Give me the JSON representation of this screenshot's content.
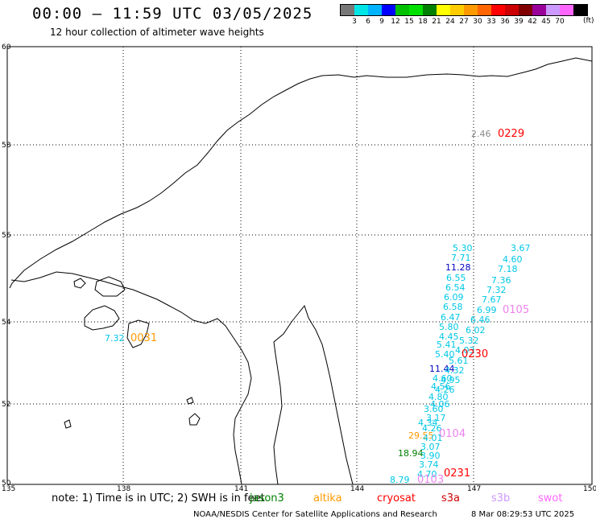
{
  "header": {
    "title": "00:00 – 11:59 UTC 03/05/2025",
    "subtitle": "12 hour collection of altimeter wave heights"
  },
  "legend": {
    "colors": [
      "#777777",
      "#00e6e6",
      "#00b3ff",
      "#0000ff",
      "#00c000",
      "#00e000",
      "#008000",
      "#ffff00",
      "#ffcc00",
      "#ff9900",
      "#ff6600",
      "#ff0000",
      "#cc0000",
      "#800000",
      "#990099",
      "#cc99ff",
      "#ff66ff",
      "#000000"
    ],
    "labels": [
      "3",
      "6",
      "9",
      "12",
      "15",
      "18",
      "21",
      "24",
      "27",
      "30",
      "33",
      "36",
      "39",
      "42",
      "45",
      "70"
    ],
    "unit": "(ft)"
  },
  "map": {
    "lat_labels": [
      "60",
      "58",
      "56",
      "54",
      "52",
      "50"
    ],
    "lon_labels": [
      "135",
      "138",
      "141",
      "144",
      "147",
      "150"
    ]
  },
  "observations": [
    {
      "text": "2.46",
      "color": "#888888"
    },
    {
      "text": "0229",
      "color": "#ff0000"
    },
    {
      "text": "5.30",
      "color": "#00c8e6"
    },
    {
      "text": "3.67",
      "color": "#00c8e6"
    },
    {
      "text": "7.71",
      "color": "#00c8e6"
    },
    {
      "text": "4.60",
      "color": "#00c8e6"
    },
    {
      "text": "11.28",
      "color": "#0000c0"
    },
    {
      "text": "7.18",
      "color": "#00c8e6"
    },
    {
      "text": "6.55",
      "color": "#00c8e6"
    },
    {
      "text": "7.36",
      "color": "#00c8e6"
    },
    {
      "text": "6.54",
      "color": "#00c8e6"
    },
    {
      "text": "7.32",
      "color": "#00c8e6"
    },
    {
      "text": "6.09",
      "color": "#00c8e6"
    },
    {
      "text": "7.67",
      "color": "#00c8e6"
    },
    {
      "text": "6.58",
      "color": "#00c8e6"
    },
    {
      "text": "6.99",
      "color": "#00c8e6"
    },
    {
      "text": "0105",
      "color": "#ee82ee"
    },
    {
      "text": "6.47",
      "color": "#00c8e6"
    },
    {
      "text": "6.46",
      "color": "#00c8e6"
    },
    {
      "text": "5.80",
      "color": "#00c8e6"
    },
    {
      "text": "6.02",
      "color": "#00c8e6"
    },
    {
      "text": "4.45",
      "color": "#00c8e6"
    },
    {
      "text": "5.32",
      "color": "#00c8e6"
    },
    {
      "text": "5.41",
      "color": "#00c8e6"
    },
    {
      "text": "4.03",
      "color": "#00c8e6"
    },
    {
      "text": "5.40",
      "color": "#00c8e6"
    },
    {
      "text": "0230",
      "color": "#ff0000"
    },
    {
      "text": "5.61",
      "color": "#00c8e6"
    },
    {
      "text": "11.44",
      "color": "#0000c0"
    },
    {
      "text": "4.32",
      "color": "#00c8e6"
    },
    {
      "text": "4.60",
      "color": "#00c8e6"
    },
    {
      "text": "4.95",
      "color": "#00c8e6"
    },
    {
      "text": "4.56",
      "color": "#00c8e6"
    },
    {
      "text": "4.26",
      "color": "#00c8e6"
    },
    {
      "text": "4.80",
      "color": "#00c8e6"
    },
    {
      "text": "4.06",
      "color": "#00c8e6"
    },
    {
      "text": "3.60",
      "color": "#00c8e6"
    },
    {
      "text": "3.17",
      "color": "#00c8e6"
    },
    {
      "text": "4.34",
      "color": "#00c8e6"
    },
    {
      "text": "4.26",
      "color": "#00c8e6"
    },
    {
      "text": "0104",
      "color": "#ee82ee"
    },
    {
      "text": "29.55",
      "color": "#ff9900"
    },
    {
      "text": "4.01",
      "color": "#00c8e6"
    },
    {
      "text": "3.07",
      "color": "#00c8e6"
    },
    {
      "text": "18.94",
      "color": "#008000"
    },
    {
      "text": "3.90",
      "color": "#00c8e6"
    },
    {
      "text": "3.74",
      "color": "#00c8e6"
    },
    {
      "text": "0231",
      "color": "#ff0000"
    },
    {
      "text": "4.70",
      "color": "#00c8e6"
    },
    {
      "text": "8.79",
      "color": "#00c8e6"
    },
    {
      "text": "0103",
      "color": "#ee82ee"
    },
    {
      "text": "7.32",
      "color": "#00c8e6"
    },
    {
      "text": "0031",
      "color": "#ff9900"
    }
  ],
  "footer": {
    "note": "note: 1) Time is in UTC; 2) SWH is in feet",
    "satellites": [
      {
        "name": "jason3",
        "color": "#008000"
      },
      {
        "name": "altika",
        "color": "#ff9900"
      },
      {
        "name": "cryosat",
        "color": "#ff0000"
      },
      {
        "name": "s3a",
        "color": "#cc0000"
      },
      {
        "name": "s3b",
        "color": "#cc99ff"
      },
      {
        "name": "swot",
        "color": "#ff66ff"
      }
    ],
    "credit": "NOAA/NESDIS Center for Satellite Applications and Research",
    "run_date": "8 Mar 08:29:53 UTC 2025"
  }
}
